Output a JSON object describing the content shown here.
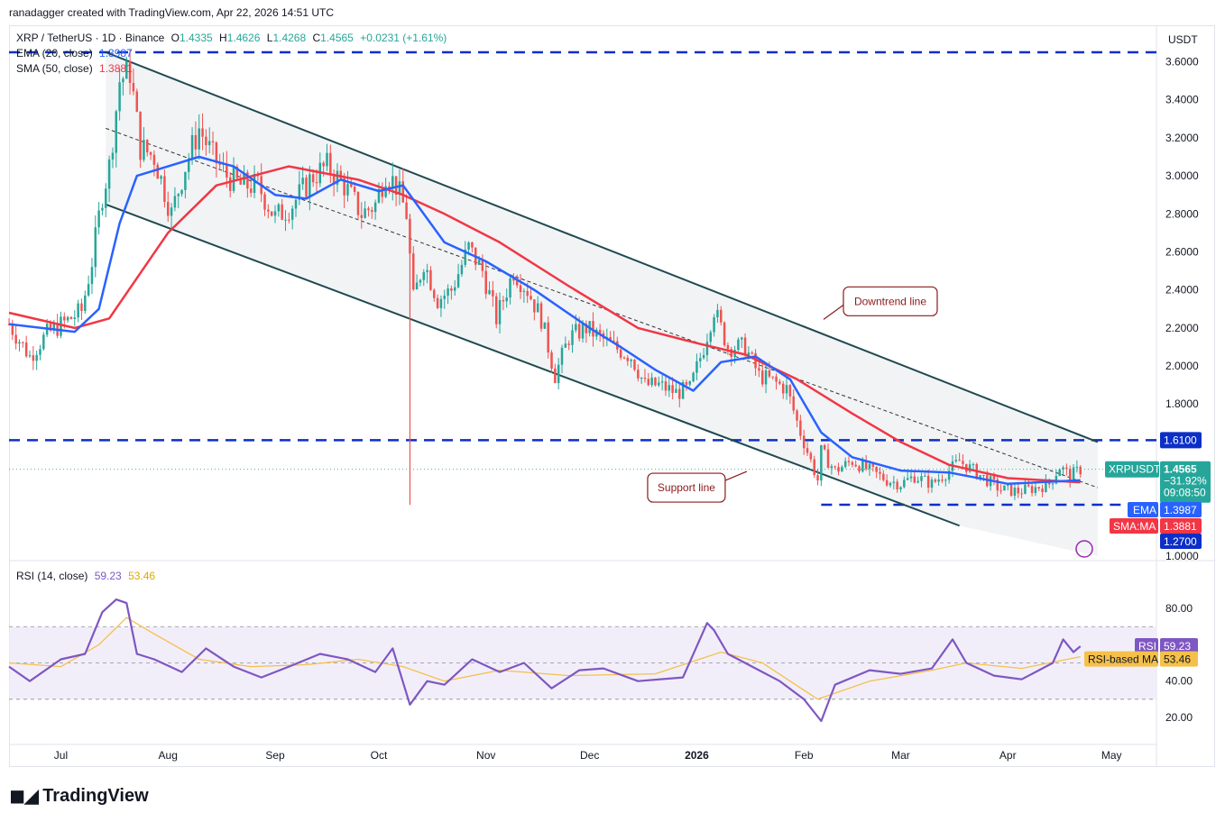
{
  "header": {
    "attribution": "ranadagger created with TradingView.com, Apr 22, 2026 14:51 UTC"
  },
  "legend": {
    "symbol": "XRP / TetherUS · 1D · Binance",
    "ohlc": [
      {
        "k": "O",
        "v": "1.4335"
      },
      {
        "k": "H",
        "v": "1.4626"
      },
      {
        "k": "L",
        "v": "1.4268"
      },
      {
        "k": "C",
        "v": "1.4565"
      }
    ],
    "change": "+0.0231 (+1.61%)",
    "ema": {
      "label": "EMA (20, close)",
      "value": "1.3987"
    },
    "sma": {
      "label": "SMA (50, close)",
      "value": "1.3881"
    },
    "rsi": {
      "label": "RSI (14, close)",
      "value": "59.23",
      "ma_value": "53.46"
    }
  },
  "brand": "TradingView",
  "colors": {
    "up": "#26a69a",
    "down": "#ef5350",
    "ema": "#2962ff",
    "sma": "#f23645",
    "rsi": "#7e57c2",
    "rsi_ma": "#f5c04a",
    "channel": "#1f4a50",
    "level": "#0d2fc7"
  },
  "chart_data": [
    {
      "type": "candlestick",
      "title": "XRP / TetherUS · 1D · Binance",
      "currency": "USDT",
      "ylim": [
        1.0,
        3.65
      ],
      "y_ticks": [
        "1.0000",
        "1.8000",
        "2.0000",
        "2.2000",
        "2.4000",
        "2.6000",
        "2.8000",
        "3.0000",
        "3.2000",
        "3.4000",
        "3.6000"
      ],
      "x_ticks": [
        {
          "label": "Jul",
          "date": "2025-07-01"
        },
        {
          "label": "Aug",
          "date": "2025-08-01"
        },
        {
          "label": "Sep",
          "date": "2025-09-01"
        },
        {
          "label": "Oct",
          "date": "2025-10-01"
        },
        {
          "label": "Nov",
          "date": "2025-11-01"
        },
        {
          "label": "Dec",
          "date": "2025-12-01"
        },
        {
          "label": "2026",
          "date": "2026-01-01"
        },
        {
          "label": "Feb",
          "date": "2026-02-01"
        },
        {
          "label": "Mar",
          "date": "2026-03-01"
        },
        {
          "label": "Apr",
          "date": "2026-04-01"
        },
        {
          "label": "May",
          "date": "2026-05-01"
        }
      ],
      "x_range": [
        "2025-06-16",
        "2026-05-14"
      ],
      "close_series": [
        [
          "2025-06-16",
          2.22
        ],
        [
          "2025-06-22",
          2.05
        ],
        [
          "2025-06-27",
          2.17
        ],
        [
          "2025-07-03",
          2.24
        ],
        [
          "2025-07-07",
          2.29
        ],
        [
          "2025-07-10",
          2.55
        ],
        [
          "2025-07-13",
          2.9
        ],
        [
          "2025-07-15",
          3.05
        ],
        [
          "2025-07-18",
          3.5
        ],
        [
          "2025-07-21",
          3.55
        ],
        [
          "2025-07-24",
          3.15
        ],
        [
          "2025-07-28",
          3.1
        ],
        [
          "2025-08-02",
          2.8
        ],
        [
          "2025-08-06",
          3.05
        ],
        [
          "2025-08-10",
          3.25
        ],
        [
          "2025-08-14",
          3.1
        ],
        [
          "2025-08-18",
          3.0
        ],
        [
          "2025-08-22",
          2.95
        ],
        [
          "2025-08-27",
          2.95
        ],
        [
          "2025-09-01",
          2.78
        ],
        [
          "2025-09-06",
          2.85
        ],
        [
          "2025-09-12",
          3.0
        ],
        [
          "2025-09-16",
          3.05
        ],
        [
          "2025-09-21",
          2.95
        ],
        [
          "2025-09-26",
          2.8
        ],
        [
          "2025-09-30",
          2.85
        ],
        [
          "2025-10-03",
          3.02
        ],
        [
          "2025-10-06",
          2.95
        ],
        [
          "2025-10-09",
          2.8
        ],
        [
          "2025-10-11",
          2.35
        ],
        [
          "2025-10-14",
          2.55
        ],
        [
          "2025-10-18",
          2.35
        ],
        [
          "2025-10-22",
          2.4
        ],
        [
          "2025-10-27",
          2.62
        ],
        [
          "2025-10-31",
          2.5
        ],
        [
          "2025-11-04",
          2.25
        ],
        [
          "2025-11-09",
          2.5
        ],
        [
          "2025-11-13",
          2.4
        ],
        [
          "2025-11-17",
          2.25
        ],
        [
          "2025-11-21",
          1.95
        ],
        [
          "2025-11-25",
          2.15
        ],
        [
          "2025-11-30",
          2.2
        ],
        [
          "2025-12-04",
          2.15
        ],
        [
          "2025-12-08",
          2.1
        ],
        [
          "2025-12-13",
          2.05
        ],
        [
          "2025-12-17",
          1.9
        ],
        [
          "2025-12-21",
          1.9
        ],
        [
          "2025-12-26",
          1.86
        ],
        [
          "2025-12-30",
          1.88
        ],
        [
          "2026-01-03",
          2.1
        ],
        [
          "2026-01-06",
          2.3
        ],
        [
          "2026-01-10",
          2.1
        ],
        [
          "2026-01-15",
          2.1
        ],
        [
          "2026-01-19",
          1.95
        ],
        [
          "2026-01-23",
          1.92
        ],
        [
          "2026-01-27",
          1.88
        ],
        [
          "2026-01-31",
          1.65
        ],
        [
          "2026-02-05",
          1.4
        ],
        [
          "2026-02-06",
          1.55
        ],
        [
          "2026-02-10",
          1.45
        ],
        [
          "2026-02-15",
          1.5
        ],
        [
          "2026-02-20",
          1.45
        ],
        [
          "2026-02-25",
          1.4
        ],
        [
          "2026-03-01",
          1.38
        ],
        [
          "2026-03-05",
          1.42
        ],
        [
          "2026-03-10",
          1.38
        ],
        [
          "2026-03-15",
          1.45
        ],
        [
          "2026-03-18",
          1.5
        ],
        [
          "2026-03-22",
          1.45
        ],
        [
          "2026-03-26",
          1.4
        ],
        [
          "2026-03-30",
          1.35
        ],
        [
          "2026-04-04",
          1.34
        ],
        [
          "2026-04-09",
          1.36
        ],
        [
          "2026-04-13",
          1.38
        ],
        [
          "2026-04-16",
          1.47
        ],
        [
          "2026-04-19",
          1.42
        ],
        [
          "2026-04-22",
          1.4565
        ]
      ],
      "ema20": [
        [
          "2025-06-16",
          2.22
        ],
        [
          "2025-07-05",
          2.18
        ],
        [
          "2025-07-12",
          2.3
        ],
        [
          "2025-07-18",
          2.75
        ],
        [
          "2025-07-23",
          3.0
        ],
        [
          "2025-08-01",
          3.05
        ],
        [
          "2025-08-10",
          3.1
        ],
        [
          "2025-08-20",
          3.05
        ],
        [
          "2025-09-01",
          2.9
        ],
        [
          "2025-09-10",
          2.88
        ],
        [
          "2025-09-20",
          2.98
        ],
        [
          "2025-10-01",
          2.92
        ],
        [
          "2025-10-08",
          2.95
        ],
        [
          "2025-10-20",
          2.65
        ],
        [
          "2025-11-01",
          2.55
        ],
        [
          "2025-11-15",
          2.4
        ],
        [
          "2025-12-01",
          2.2
        ],
        [
          "2025-12-10",
          2.1
        ],
        [
          "2025-12-20",
          1.98
        ],
        [
          "2025-12-31",
          1.87
        ],
        [
          "2026-01-08",
          2.02
        ],
        [
          "2026-01-18",
          2.05
        ],
        [
          "2026-01-28",
          1.93
        ],
        [
          "2026-02-06",
          1.65
        ],
        [
          "2026-02-15",
          1.52
        ],
        [
          "2026-03-01",
          1.45
        ],
        [
          "2026-03-15",
          1.44
        ],
        [
          "2026-04-01",
          1.38
        ],
        [
          "2026-04-22",
          1.3987
        ]
      ],
      "sma50": [
        [
          "2025-06-16",
          2.28
        ],
        [
          "2025-07-05",
          2.2
        ],
        [
          "2025-07-15",
          2.25
        ],
        [
          "2025-08-01",
          2.7
        ],
        [
          "2025-08-15",
          2.95
        ],
        [
          "2025-09-05",
          3.05
        ],
        [
          "2025-09-25",
          2.98
        ],
        [
          "2025-10-08",
          2.9
        ],
        [
          "2025-10-20",
          2.8
        ],
        [
          "2025-11-05",
          2.65
        ],
        [
          "2025-11-25",
          2.42
        ],
        [
          "2025-12-15",
          2.2
        ],
        [
          "2026-01-01",
          2.12
        ],
        [
          "2026-01-15",
          2.06
        ],
        [
          "2026-01-30",
          1.93
        ],
        [
          "2026-02-15",
          1.75
        ],
        [
          "2026-03-01",
          1.6
        ],
        [
          "2026-03-15",
          1.48
        ],
        [
          "2026-04-01",
          1.41
        ],
        [
          "2026-04-22",
          1.3881
        ]
      ],
      "support_trendline": [
        [
          "2025-07-14",
          2.85
        ],
        [
          "2026-03-18",
          1.16
        ]
      ],
      "downtrend_trendline": [
        [
          "2025-07-14",
          3.65
        ],
        [
          "2026-04-27",
          1.6
        ]
      ],
      "midline": [
        [
          "2025-07-14",
          3.25
        ],
        [
          "2026-04-27",
          1.36
        ]
      ],
      "horizontal_levels": [
        3.65,
        1.61,
        1.27
      ],
      "annotations": [
        {
          "text": "Downtrend line",
          "date": "2026-02-26",
          "price": 2.34
        },
        {
          "text": "Support line",
          "date": "2025-12-29",
          "price": 1.36
        }
      ],
      "price_labels": [
        {
          "text": "1.6100"
        },
        {
          "ticker": "XRPUSDT",
          "value": "1.4565",
          "change_pct": "−31.92%",
          "countdown": "09:08:50"
        },
        {
          "text": "EMA",
          "value": "1.3987"
        },
        {
          "text": "SMA:MA",
          "value": "1.3881"
        },
        {
          "text": "1.2700"
        }
      ]
    },
    {
      "type": "line",
      "title": "RSI (14, close)",
      "ylim": [
        15,
        90
      ],
      "y_ticks": [
        "20.00",
        "40.00",
        "80.00"
      ],
      "band": [
        30,
        70
      ],
      "series": [
        {
          "name": "RSI",
          "values": [
            [
              "2025-06-16",
              48
            ],
            [
              "2025-06-22",
              40
            ],
            [
              "2025-07-01",
              52
            ],
            [
              "2025-07-08",
              55
            ],
            [
              "2025-07-13",
              78
            ],
            [
              "2025-07-17",
              85
            ],
            [
              "2025-07-20",
              83
            ],
            [
              "2025-07-23",
              55
            ],
            [
              "2025-07-28",
              52
            ],
            [
              "2025-08-05",
              45
            ],
            [
              "2025-08-12",
              58
            ],
            [
              "2025-08-20",
              48
            ],
            [
              "2025-08-28",
              42
            ],
            [
              "2025-09-05",
              48
            ],
            [
              "2025-09-14",
              55
            ],
            [
              "2025-09-22",
              52
            ],
            [
              "2025-09-30",
              45
            ],
            [
              "2025-10-05",
              58
            ],
            [
              "2025-10-10",
              27
            ],
            [
              "2025-10-15",
              40
            ],
            [
              "2025-10-20",
              38
            ],
            [
              "2025-10-28",
              52
            ],
            [
              "2025-11-05",
              45
            ],
            [
              "2025-11-12",
              50
            ],
            [
              "2025-11-20",
              36
            ],
            [
              "2025-11-28",
              46
            ],
            [
              "2025-12-05",
              47
            ],
            [
              "2025-12-15",
              40
            ],
            [
              "2025-12-28",
              42
            ],
            [
              "2026-01-04",
              72
            ],
            [
              "2026-01-06",
              68
            ],
            [
              "2026-01-10",
              55
            ],
            [
              "2026-01-18",
              47
            ],
            [
              "2026-01-25",
              40
            ],
            [
              "2026-02-01",
              30
            ],
            [
              "2026-02-06",
              18
            ],
            [
              "2026-02-10",
              38
            ],
            [
              "2026-02-20",
              46
            ],
            [
              "2026-03-01",
              44
            ],
            [
              "2026-03-10",
              47
            ],
            [
              "2026-03-16",
              63
            ],
            [
              "2026-03-20",
              50
            ],
            [
              "2026-03-28",
              43
            ],
            [
              "2026-04-05",
              41
            ],
            [
              "2026-04-14",
              50
            ],
            [
              "2026-04-17",
              63
            ],
            [
              "2026-04-20",
              56
            ],
            [
              "2026-04-22",
              59.23
            ]
          ]
        },
        {
          "name": "RSI-based MA",
          "values": [
            [
              "2025-06-16",
              50
            ],
            [
              "2025-07-01",
              48
            ],
            [
              "2025-07-12",
              60
            ],
            [
              "2025-07-20",
              75
            ],
            [
              "2025-07-28",
              66
            ],
            [
              "2025-08-10",
              52
            ],
            [
              "2025-08-25",
              48
            ],
            [
              "2025-09-10",
              49
            ],
            [
              "2025-09-25",
              52
            ],
            [
              "2025-10-08",
              48
            ],
            [
              "2025-10-20",
              40
            ],
            [
              "2025-11-05",
              46
            ],
            [
              "2025-11-25",
              43
            ],
            [
              "2025-12-20",
              44
            ],
            [
              "2026-01-08",
              56
            ],
            [
              "2026-01-20",
              50
            ],
            [
              "2026-02-05",
              30
            ],
            [
              "2026-02-20",
              40
            ],
            [
              "2026-03-10",
              46
            ],
            [
              "2026-03-20",
              50
            ],
            [
              "2026-04-05",
              47
            ],
            [
              "2026-04-22",
              53.46
            ]
          ]
        }
      ],
      "labels": [
        {
          "text": "RSI",
          "value": "59.23"
        },
        {
          "text": "RSI-based MA",
          "value": "53.46"
        }
      ]
    }
  ]
}
